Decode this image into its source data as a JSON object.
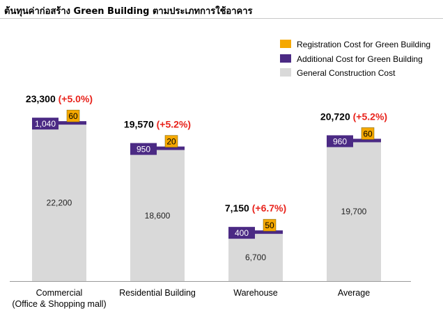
{
  "chart_data": {
    "type": "bar",
    "stacked": true,
    "title": "ต้นทุนค่าก่อสร้าง Green Building ตามประเภทการใช้อาคาร",
    "categories": [
      [
        "Commercial",
        "(Office & Shopping mall)"
      ],
      [
        "Residential Building"
      ],
      [
        "Warehouse"
      ],
      [
        "Average"
      ]
    ],
    "series": [
      {
        "name": "General Construction Cost",
        "color": "#d9d9d9",
        "text_color": "#222222",
        "values": [
          22200,
          18600,
          6700,
          19700
        ],
        "labels": [
          "22,200",
          "18,600",
          "6,700",
          "19,700"
        ]
      },
      {
        "name": "Additional Cost for Green Building",
        "color": "#4b2a84",
        "text_color": "#ffffff",
        "values": [
          1040,
          950,
          400,
          960
        ],
        "labels": [
          "1,040",
          "950",
          "400",
          "960"
        ]
      },
      {
        "name": "Registration Cost for Green Building",
        "color": "#f5a800",
        "text_color": "#000000",
        "values": [
          60,
          20,
          50,
          60
        ],
        "labels": [
          "60",
          "20",
          "50",
          "60"
        ]
      }
    ],
    "totals": [
      {
        "value": "23,300",
        "change": "(+5.0%)"
      },
      {
        "value": "19,570",
        "change": "(+5.2%)"
      },
      {
        "value": "7,150",
        "change": "(+6.7%)"
      },
      {
        "value": "20,720",
        "change": "(+5.2%)"
      }
    ],
    "legend_order": [
      "Registration Cost for Green Building",
      "Additional Cost for Green Building",
      "General Construction Cost"
    ],
    "legend_position": "top-right",
    "ylim": [
      0,
      23300
    ],
    "grid": false
  }
}
